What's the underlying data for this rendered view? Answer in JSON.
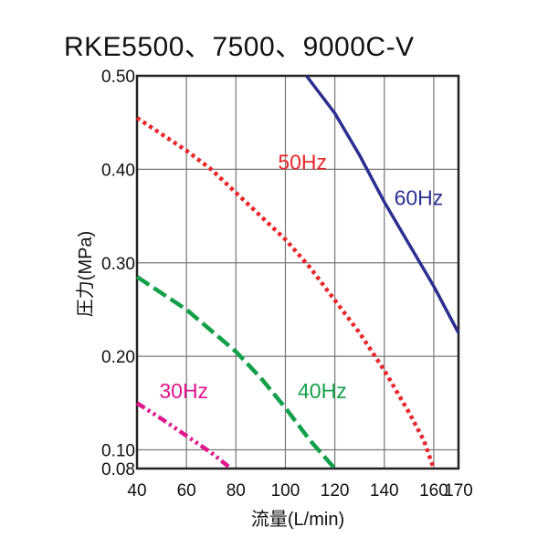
{
  "chart_data": {
    "type": "line",
    "title": "RKE5500、7500、9000C-V",
    "xlabel": "流量(L/min)",
    "ylabel": "圧力(MPa)",
    "xlim": [
      40,
      170
    ],
    "ylim": [
      0.08,
      0.5
    ],
    "xticks": [
      "40",
      "60",
      "80",
      "100",
      "120",
      "140",
      "160",
      "170"
    ],
    "yticks": [
      "0.50",
      "0.40",
      "0.30",
      "0.20",
      "0.10",
      "0.08"
    ],
    "grid": true,
    "series": [
      {
        "name": "60Hz",
        "color": "#2b2f8f",
        "style": "solid",
        "label_at": [
          144,
          0.362
        ],
        "x": [
          108.5,
          120,
          130,
          140,
          150,
          160,
          170
        ],
        "y": [
          0.5,
          0.46,
          0.415,
          0.365,
          0.32,
          0.275,
          0.225
        ]
      },
      {
        "name": "50Hz",
        "color": "#e8262a",
        "style": "dotted",
        "label_at": [
          97,
          0.4
        ],
        "x": [
          40,
          60,
          70,
          80,
          90,
          100,
          110,
          120,
          130,
          140,
          150,
          156,
          160
        ],
        "y": [
          0.455,
          0.42,
          0.4,
          0.375,
          0.35,
          0.325,
          0.295,
          0.26,
          0.225,
          0.185,
          0.14,
          0.11,
          0.08
        ]
      },
      {
        "name": "40Hz",
        "color": "#13a04a",
        "style": "dashed",
        "label_at": [
          105,
          0.155
        ],
        "x": [
          40,
          60,
          80,
          90,
          100,
          110,
          120
        ],
        "y": [
          0.285,
          0.25,
          0.205,
          0.177,
          0.145,
          0.11,
          0.08
        ]
      },
      {
        "name": "30Hz",
        "color": "#e0168c",
        "style": "dashdotdot",
        "label_at": [
          49,
          0.155
        ],
        "x": [
          40,
          50,
          60,
          70,
          78
        ],
        "y": [
          0.15,
          0.133,
          0.115,
          0.097,
          0.08
        ]
      }
    ]
  }
}
